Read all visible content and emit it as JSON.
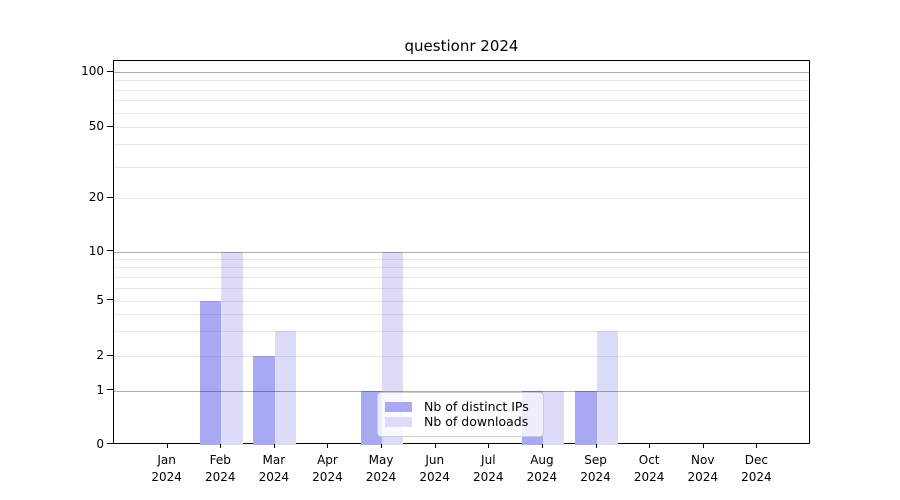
{
  "figure": {
    "title": "questionr 2024"
  },
  "chart_data": {
    "type": "bar",
    "title": "questionr 2024",
    "categories": [
      "Jan 2024",
      "Feb 2024",
      "Mar 2024",
      "Apr 2024",
      "May 2024",
      "Jun 2024",
      "Jul 2024",
      "Aug 2024",
      "Sep 2024",
      "Oct 2024",
      "Nov 2024",
      "Dec 2024"
    ],
    "series": [
      {
        "name": "Nb of distinct IPs",
        "color": "#a8a8f3",
        "values": [
          0,
          5,
          2,
          0,
          1,
          0,
          0,
          1,
          1,
          0,
          0,
          0
        ]
      },
      {
        "name": "Nb of downloads",
        "color": "#dcdcf8",
        "values": [
          0,
          10,
          3,
          0,
          10,
          0,
          0,
          1,
          3,
          0,
          0,
          0
        ]
      }
    ],
    "yscale": "log-like (compressed near zero)",
    "ylim": [
      0,
      115
    ],
    "yticks": [
      0,
      1,
      2,
      5,
      10,
      20,
      50,
      100
    ],
    "minor_gridline_values": [
      2,
      3,
      4,
      5,
      6,
      7,
      8,
      9,
      20,
      30,
      40,
      50,
      60,
      70,
      80,
      90
    ],
    "major_gridline_values": [
      1,
      10,
      100
    ],
    "grid": true,
    "legend_position": "lower center"
  },
  "colors": {
    "series_distinct_ips": "#a8a8f3",
    "series_downloads": "#dcdcf8",
    "gridline_minor": "#e9e9e9",
    "gridline_major": "#aeaeae",
    "axis": "#000000",
    "legend_border": "#cccccc"
  }
}
